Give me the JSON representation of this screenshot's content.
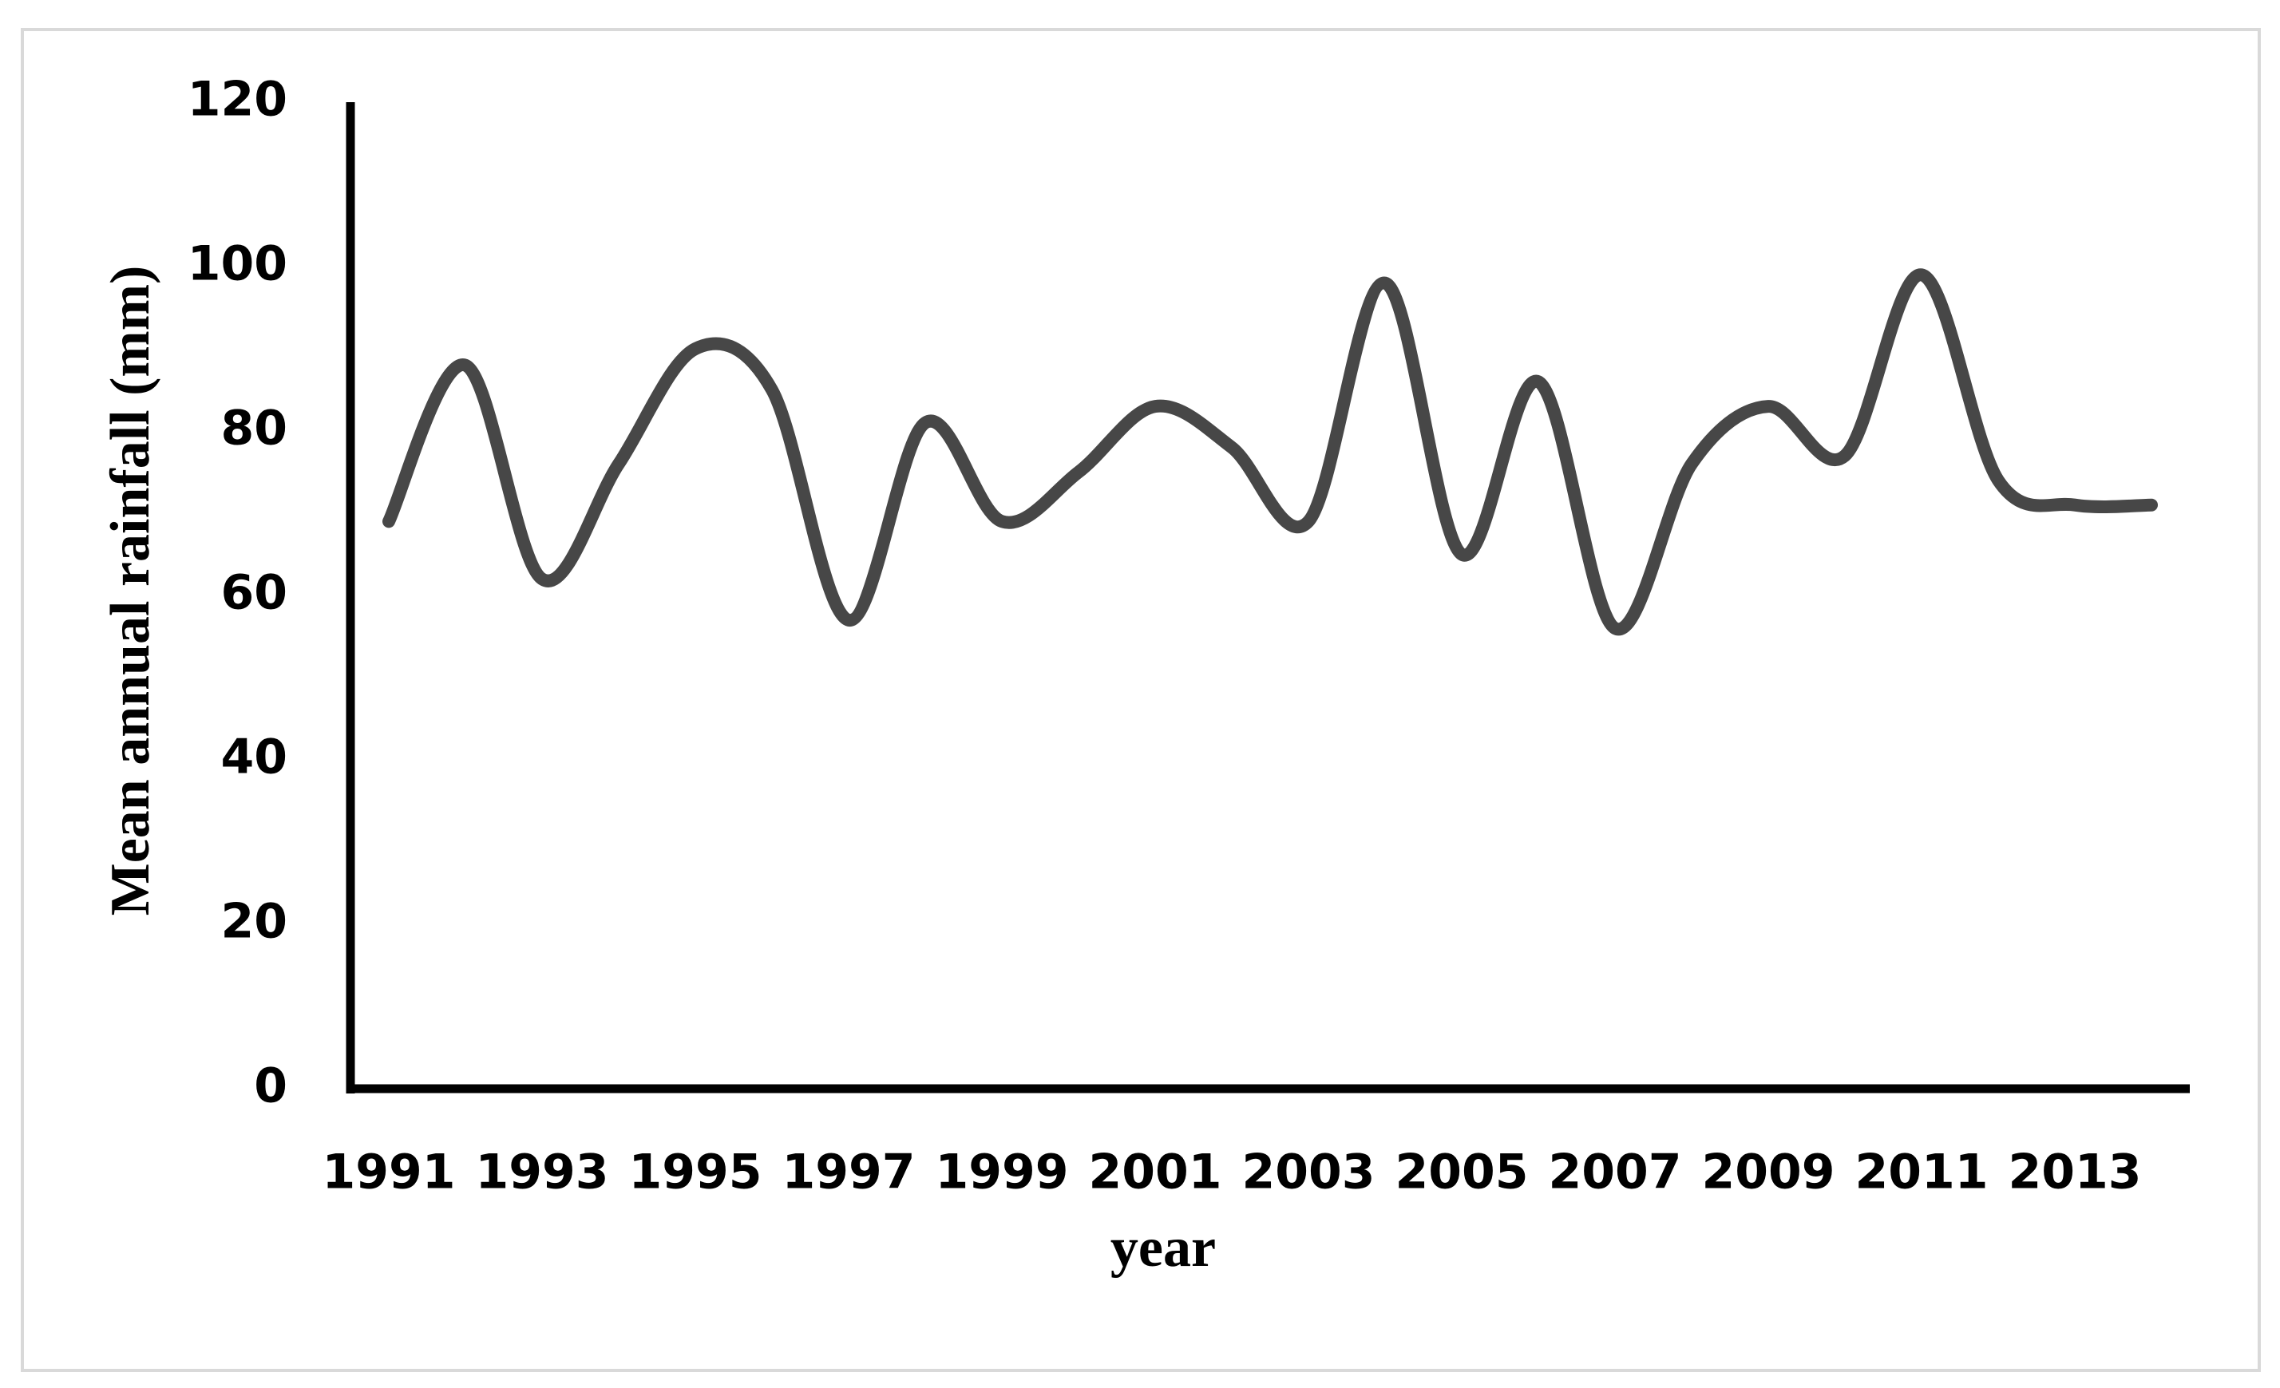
{
  "chart_data": {
    "type": "line",
    "x_label": "year",
    "y_label": "Mean annual rainfall (mm)",
    "categories": [
      "1991",
      null,
      "1993",
      null,
      "1995",
      null,
      "1997",
      null,
      "1999",
      null,
      "2001",
      null,
      "2003",
      null,
      "2005",
      null,
      "2007",
      null,
      "2009",
      null,
      "2011",
      null,
      "2013",
      null
    ],
    "values": [
      69,
      88,
      62,
      76,
      90,
      85,
      57,
      81,
      69,
      75,
      83,
      78,
      69,
      98,
      65,
      86,
      56,
      76,
      83,
      77,
      99,
      74,
      71,
      71
    ],
    "color": "#474747",
    "ylim": [
      0,
      120
    ],
    "yticks": [
      0,
      20,
      40,
      60,
      80,
      100,
      120
    ],
    "grid": false
  }
}
